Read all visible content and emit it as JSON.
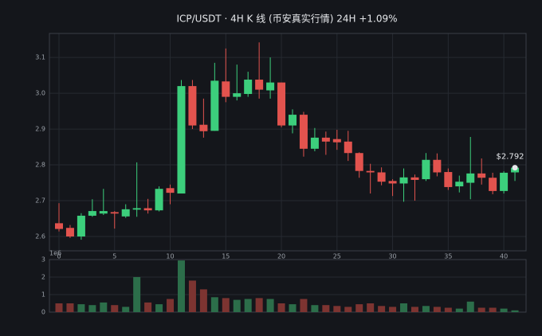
{
  "chart_data": [
    {
      "type": "candlestick",
      "title": "ICP/USDT · 4H K 线 (币安真实行情)  24H +1.09%",
      "x": [
        0,
        1,
        2,
        3,
        4,
        5,
        6,
        7,
        8,
        9,
        10,
        11,
        12,
        13,
        14,
        15,
        16,
        17,
        18,
        19,
        20,
        21,
        22,
        23,
        24,
        25,
        26,
        27,
        28,
        29,
        30,
        31,
        32,
        33,
        34,
        35,
        36,
        37,
        38,
        39,
        40,
        41
      ],
      "open": [
        2.637,
        2.624,
        2.6,
        2.658,
        2.664,
        2.668,
        2.656,
        2.675,
        2.679,
        2.673,
        2.735,
        2.72,
        3.02,
        2.912,
        2.895,
        3.033,
        2.99,
        2.998,
        3.038,
        3.008,
        3.03,
        2.91,
        2.94,
        2.845,
        2.876,
        2.872,
        2.865,
        2.833,
        2.783,
        2.779,
        2.755,
        2.748,
        2.765,
        2.76,
        2.814,
        2.78,
        2.74,
        2.75,
        2.776,
        2.764,
        2.727,
        2.779
      ],
      "close": [
        2.621,
        2.6,
        2.658,
        2.671,
        2.671,
        2.664,
        2.676,
        2.679,
        2.673,
        2.733,
        2.722,
        3.02,
        2.91,
        2.894,
        3.035,
        2.99,
        3.0,
        3.038,
        3.01,
        3.03,
        2.91,
        2.94,
        2.845,
        2.876,
        2.865,
        2.863,
        2.833,
        2.783,
        2.779,
        2.753,
        2.748,
        2.765,
        2.758,
        2.814,
        2.779,
        2.738,
        2.753,
        2.776,
        2.764,
        2.727,
        2.778,
        2.792
      ],
      "high": [
        2.693,
        2.632,
        2.665,
        2.704,
        2.733,
        2.671,
        2.69,
        2.807,
        2.705,
        2.74,
        2.745,
        3.037,
        3.037,
        2.985,
        3.085,
        3.125,
        3.08,
        3.06,
        3.142,
        3.1,
        3.03,
        2.955,
        2.948,
        2.903,
        2.893,
        2.898,
        2.895,
        2.835,
        2.803,
        2.793,
        2.76,
        2.79,
        2.773,
        2.833,
        2.832,
        2.79,
        2.77,
        2.878,
        2.818,
        2.778,
        2.782,
        2.795
      ],
      "low": [
        2.614,
        2.596,
        2.591,
        2.655,
        2.66,
        2.622,
        2.652,
        2.655,
        2.664,
        2.67,
        2.69,
        2.72,
        2.9,
        2.876,
        2.895,
        2.975,
        2.98,
        2.99,
        2.985,
        2.985,
        2.905,
        2.888,
        2.823,
        2.838,
        2.828,
        2.842,
        2.811,
        2.764,
        2.72,
        2.743,
        2.713,
        2.697,
        2.7,
        2.755,
        2.768,
        2.73,
        2.723,
        2.704,
        2.745,
        2.718,
        2.72,
        2.755
      ],
      "up_color": "#3ccf7c",
      "down_color": "#e2534e",
      "xlim": [
        -0.86,
        42
      ],
      "xticks": [
        0,
        5,
        10,
        15,
        20,
        25,
        30,
        35,
        40
      ],
      "ylim": [
        2.56,
        3.167
      ],
      "yticks": [
        {
          "value": 2.6,
          "label": "2.6"
        },
        {
          "value": 2.7,
          "label": "2.7"
        },
        {
          "value": 2.8,
          "label": "2.8"
        },
        {
          "value": 2.9,
          "label": "2.9"
        },
        {
          "value": 3.0,
          "label": "3.0"
        },
        {
          "value": 3.1,
          "label": "3.1"
        }
      ],
      "grid": true,
      "annotation": {
        "x": 41,
        "value": 2.792,
        "label": "$2.792"
      }
    },
    {
      "type": "volume",
      "x": [
        0,
        1,
        2,
        3,
        4,
        5,
        6,
        7,
        8,
        9,
        10,
        11,
        12,
        13,
        14,
        15,
        16,
        17,
        18,
        19,
        20,
        21,
        22,
        23,
        24,
        25,
        26,
        27,
        28,
        29,
        30,
        31,
        32,
        33,
        34,
        35,
        36,
        37,
        38,
        39,
        40,
        41
      ],
      "values": [
        0.5,
        0.5,
        0.45,
        0.4,
        0.55,
        0.4,
        0.3,
        2.0,
        0.55,
        0.45,
        0.75,
        2.95,
        1.8,
        1.3,
        0.85,
        0.8,
        0.7,
        0.75,
        0.8,
        0.75,
        0.5,
        0.45,
        0.75,
        0.4,
        0.4,
        0.35,
        0.3,
        0.45,
        0.5,
        0.35,
        0.3,
        0.5,
        0.3,
        0.35,
        0.3,
        0.25,
        0.2,
        0.6,
        0.25,
        0.25,
        0.2,
        0.1
      ],
      "up_color": "#2c6e4a",
      "down_color": "#7d3431",
      "xlim": [
        -0.86,
        42
      ],
      "ylim": [
        0,
        3
      ],
      "yticks": [
        0,
        1,
        2,
        3
      ],
      "offset_label": "1e6",
      "grid": true
    }
  ]
}
